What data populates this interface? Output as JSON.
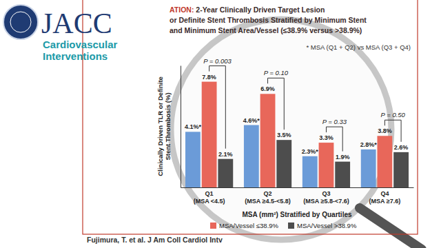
{
  "header": {
    "journal": "JACC",
    "section_lines": [
      "Cardiovascular",
      "Interventions"
    ]
  },
  "chart_data": {
    "type": "bar",
    "title_lines": [
      "ATION: 2-Year Clinically Driven Target Lesion",
      "or Definite Stent Thrombosis Stratified by Minimum Stent",
      "and Minimum Stent Area/Vessel (≤38.9% versus >38.9%)"
    ],
    "annotation": "* MSA (Q1 + Q2) vs MSA (Q3 + Q4)",
    "categories": [
      "Q1 (MSA <4.5)",
      "Q2 (MSA ≥4.5-<5.8)",
      "Q3 (MSA ≥5.8-<7.6)",
      "Q4 (MSA ≥7.6)"
    ],
    "series": [
      {
        "color": "#6b9bd8",
        "values": [
          4.1,
          4.6,
          2.3,
          2.8
        ],
        "value_labels": [
          "4.1%*",
          "4.6%*",
          "2.3%*",
          "2.8%*"
        ]
      },
      {
        "name": "MSA/Vessel ≤38.9%",
        "color": "#e8675a",
        "values": [
          7.8,
          6.9,
          3.3,
          3.8
        ],
        "value_labels": [
          "7.8%",
          "6.9%",
          "3.3%",
          "3.8%"
        ]
      },
      {
        "name": "MSA/Vessel >38.9%",
        "color": "#4d4d4d",
        "values": [
          2.1,
          3.5,
          1.9,
          2.6
        ],
        "value_labels": [
          "2.1%",
          "3.5%",
          "1.9%",
          "2.6%"
        ]
      }
    ],
    "p_values": [
      "P = 0.003",
      "P = 0.10",
      "P = 0.33",
      "P = 0.50"
    ],
    "ylim": [
      0,
      9
    ],
    "tick_labels": "x",
    "data_labels": true,
    "legend": "bottom",
    "x_label": "MSA (mm²) Stratified by Quartiles",
    "y_label": "Clinically Driven TLR or Definite Stent Thrombosis (%)",
    "source": "Fujimura, T. et al. J Am Coll Cardiol Intv"
  }
}
